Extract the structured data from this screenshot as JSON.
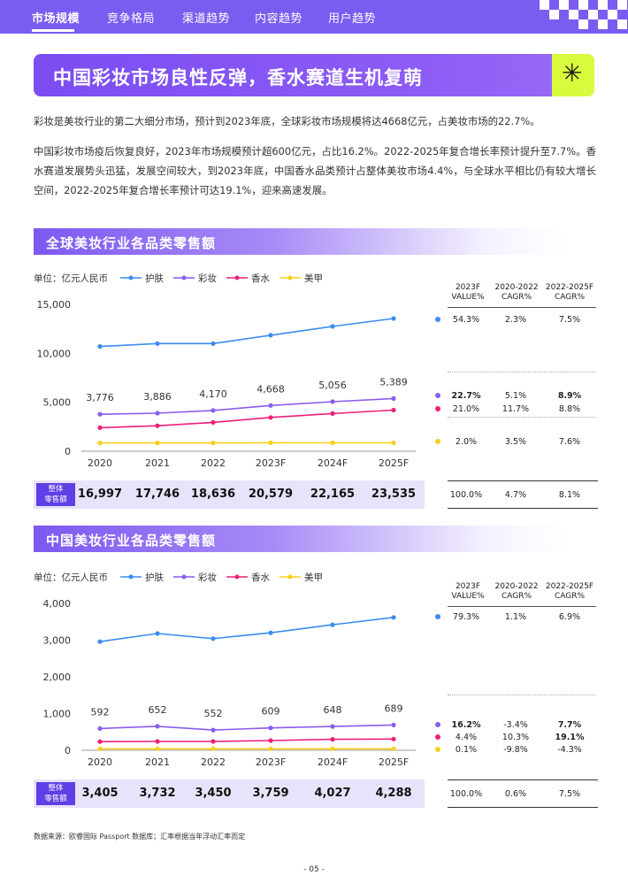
{
  "nav": {
    "tabs": [
      "市场规模",
      "竞争格局",
      "渠道趋势",
      "内容趋势",
      "用户趋势"
    ]
  },
  "hero": {
    "title": "中国彩妆市场良性反弹，香水赛道生机复萌",
    "badge_glyph": "✳"
  },
  "paragraphs": [
    "彩妆是美妆行业的第二大细分市场，预计到2023年底，全球彩妆市场规模将达4668亿元，占美妆市场的22.7%。",
    "中国彩妆市场疫后恢复良好，2023年市场规模预计超600亿元，占比16.2%。2022-2025年复合增长率预计提升至7.7%。香水赛道发展势头迅猛，发展空间较大，到2023年底，中国香水品类预计占整体美妆市场4.4%，与全球水平相比仍有较大增长空间，2022-2025年复合增长率预计可达19.1%，迎来高速发展。"
  ],
  "colors": {
    "skin_care": "#3b8cf0",
    "makeup": "#8a5cf0",
    "fragrance": "#ee1f7a",
    "nails": "#f7cf1c",
    "accent": "#7b5cf0",
    "highlight": "#d9fb3d"
  },
  "legend": {
    "unit": "单位：亿元人民币",
    "items": [
      "护肤",
      "彩妆",
      "香水",
      "美甲"
    ]
  },
  "stats_headers": {
    "col1": [
      "2023F",
      "VALUE%"
    ],
    "col2": [
      "2020-2022",
      "CAGR%"
    ],
    "col3": [
      "2022-2025F",
      "CAGR%"
    ]
  },
  "total_label": [
    "整体",
    "零售额"
  ],
  "chart_data": [
    {
      "type": "line",
      "title": "全球美妆行业各品类零售额",
      "ylabel": "单位：亿元人民币",
      "x": [
        "2020",
        "2021",
        "2022",
        "2023F",
        "2024F",
        "2025F"
      ],
      "ylim": [
        0,
        15000
      ],
      "yticks": [
        "15,000",
        "10,000",
        "5,000",
        "0"
      ],
      "yticks_values": [
        15000,
        10000,
        5000,
        0
      ],
      "grid": false,
      "legend_position": "top-left",
      "series": [
        {
          "name": "护肤",
          "values": [
            10700,
            11000,
            11000,
            11850,
            12750,
            13550
          ]
        },
        {
          "name": "彩妆",
          "values": [
            3776,
            3886,
            4170,
            4668,
            5056,
            5389
          ]
        },
        {
          "name": "香水",
          "values": [
            2400,
            2600,
            2950,
            3450,
            3850,
            4200
          ]
        },
        {
          "name": "美甲",
          "values": [
            850,
            850,
            850,
            870,
            860,
            860
          ]
        }
      ],
      "data_labels": [
        "3,776",
        "3,886",
        "4,170",
        "4,668",
        "5,056",
        "5,389"
      ],
      "totals": [
        "16,997",
        "17,746",
        "18,636",
        "20,579",
        "22,165",
        "23,535"
      ],
      "stats": [
        {
          "value": "54.3%",
          "cagr1": "2.3%",
          "cagr2": "7.5%",
          "bold1": false,
          "bold3": false
        },
        {
          "value": "22.7%",
          "cagr1": "5.1%",
          "cagr2": "8.9%",
          "bold1": true,
          "bold3": true
        },
        {
          "value": "21.0%",
          "cagr1": "11.7%",
          "cagr2": "8.8%",
          "bold1": false,
          "bold3": false
        },
        {
          "value": "2.0%",
          "cagr1": "3.5%",
          "cagr2": "7.6%",
          "bold1": false,
          "bold3": false
        }
      ],
      "total_stats": {
        "value": "100.0%",
        "cagr1": "4.7%",
        "cagr2": "8.1%"
      }
    },
    {
      "type": "line",
      "title": "中国美妆行业各品类零售额",
      "ylabel": "单位：亿元人民币",
      "x": [
        "2020",
        "2021",
        "2022",
        "2023F",
        "2024F",
        "2025F"
      ],
      "ylim": [
        0,
        4000
      ],
      "yticks": [
        "4,000",
        "3,000",
        "2,000",
        "1,000",
        "0"
      ],
      "yticks_values": [
        4000,
        3000,
        2000,
        1000,
        0
      ],
      "grid": false,
      "legend_position": "top-left",
      "series": [
        {
          "name": "护肤",
          "values": [
            2960,
            3180,
            3040,
            3200,
            3420,
            3620
          ]
        },
        {
          "name": "彩妆",
          "values": [
            592,
            652,
            552,
            609,
            648,
            689
          ]
        },
        {
          "name": "香水",
          "values": [
            235,
            240,
            240,
            265,
            300,
            305
          ]
        },
        {
          "name": "美甲",
          "values": [
            40,
            40,
            40,
            40,
            40,
            40
          ]
        }
      ],
      "data_labels": [
        "592",
        "652",
        "552",
        "609",
        "648",
        "689"
      ],
      "totals": [
        "3,405",
        "3,732",
        "3,450",
        "3,759",
        "4,027",
        "4,288"
      ],
      "stats": [
        {
          "value": "79.3%",
          "cagr1": "1.1%",
          "cagr2": "6.9%",
          "bold1": false,
          "bold3": false
        },
        {
          "value": "16.2%",
          "cagr1": "-3.4%",
          "cagr2": "7.7%",
          "bold1": true,
          "bold3": true
        },
        {
          "value": "4.4%",
          "cagr1": "10.3%",
          "cagr2": "19.1%",
          "bold1": false,
          "bold3": true
        },
        {
          "value": "0.1%",
          "cagr1": "-9.8%",
          "cagr2": "-4.3%",
          "bold1": false,
          "bold3": false
        }
      ],
      "total_stats": {
        "value": "100.0%",
        "cagr1": "0.6%",
        "cagr2": "7.5%"
      }
    }
  ],
  "source": "数据来源：欧睿国际 Passport 数据库；汇率根据当年浮动汇率而定",
  "page_number": "- 05 -"
}
